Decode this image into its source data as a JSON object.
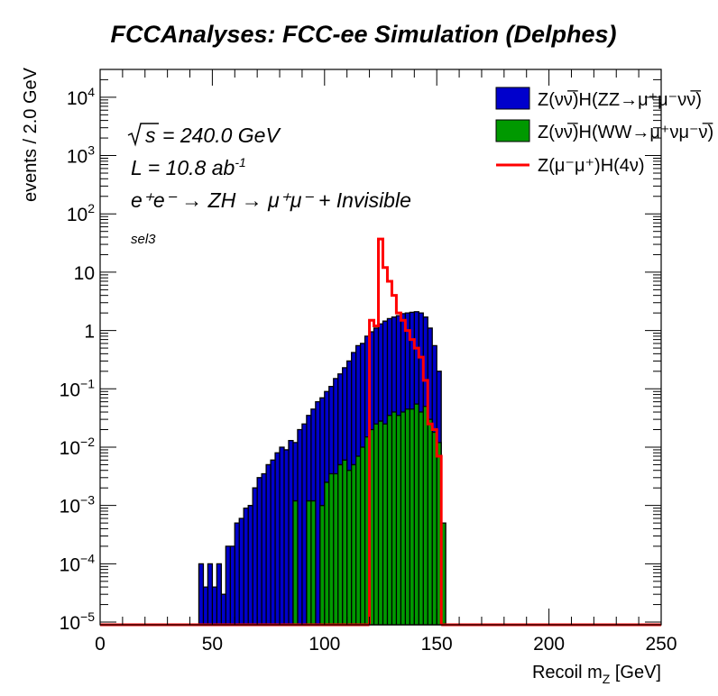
{
  "chart_data": {
    "type": "histogram",
    "title": "FCCAnalyses: FCC-ee Simulation (Delphes)",
    "xlabel": "Recoil m_Z [GeV]",
    "ylabel": "events / 2.0 GeV",
    "xlim": [
      0,
      250
    ],
    "ylim": [
      9e-06,
      30000
    ],
    "yscale": "log",
    "bin_width": 2.0,
    "x_ticks": [
      "0",
      "50",
      "100",
      "150",
      "200",
      "250"
    ],
    "y_ticks": [
      "10^{-5}",
      "10^{-4}",
      "10^{-3}",
      "10^{-2}",
      "10^{-1}",
      "1",
      "10",
      "10^{2}",
      "10^{3}",
      "10^{4}"
    ],
    "annotations": {
      "sqrts": "= 240.0 GeV",
      "lumi": "L = 10.8 ab",
      "lumi_exp": "-1",
      "process": "e⁺e⁻ → ZH → μ⁺μ⁻ + Invisible",
      "selection": "sel3"
    },
    "legend": {
      "position": "top-right",
      "entries": [
        {
          "label": "Z(νν̅)H(ZZ→μ⁺μ⁻νν̅)",
          "style": "fill",
          "color": "#0000cc"
        },
        {
          "label": "Z(νν̅)H(WW→μ⁺νμ⁻ν̅)",
          "style": "fill",
          "color": "#009900"
        },
        {
          "label": "Z(μ⁻μ⁺)H(4ν)",
          "style": "line",
          "color": "#ff0000"
        }
      ]
    },
    "series": [
      {
        "name": "Z(νν̅)H(ZZ→μ⁺μ⁻νν̅)",
        "style": "filled",
        "color": "#0000cc",
        "bins": [
          [
            44,
            0.0001
          ],
          [
            46,
            4e-05
          ],
          [
            48,
            0.0001
          ],
          [
            50,
            4e-05
          ],
          [
            52,
            0.0001
          ],
          [
            54,
            3e-05
          ],
          [
            56,
            0.0002
          ],
          [
            58,
            0.0002
          ],
          [
            60,
            0.0005
          ],
          [
            62,
            0.0006
          ],
          [
            64,
            0.0009
          ],
          [
            66,
            0.001
          ],
          [
            68,
            0.002
          ],
          [
            70,
            0.003
          ],
          [
            72,
            0.0035
          ],
          [
            74,
            0.005
          ],
          [
            76,
            0.006
          ],
          [
            78,
            0.008
          ],
          [
            80,
            0.01
          ],
          [
            82,
            0.009
          ],
          [
            84,
            0.013
          ],
          [
            86,
            0.012
          ],
          [
            88,
            0.02
          ],
          [
            90,
            0.025
          ],
          [
            92,
            0.035
          ],
          [
            94,
            0.045
          ],
          [
            96,
            0.06
          ],
          [
            98,
            0.07
          ],
          [
            100,
            0.09
          ],
          [
            102,
            0.11
          ],
          [
            104,
            0.15
          ],
          [
            106,
            0.18
          ],
          [
            108,
            0.23
          ],
          [
            110,
            0.3
          ],
          [
            112,
            0.42
          ],
          [
            114,
            0.55
          ],
          [
            116,
            0.6
          ],
          [
            118,
            0.8
          ],
          [
            120,
            0.95
          ],
          [
            122,
            1.1
          ],
          [
            124,
            1.3
          ],
          [
            126,
            1.45
          ],
          [
            128,
            1.6
          ],
          [
            130,
            1.7
          ],
          [
            132,
            1.8
          ],
          [
            134,
            1.95
          ],
          [
            136,
            2.0
          ],
          [
            138,
            2.05
          ],
          [
            140,
            2.1
          ],
          [
            142,
            2.0
          ],
          [
            144,
            1.7
          ],
          [
            146,
            1.1
          ],
          [
            148,
            0.55
          ],
          [
            150,
            0.2
          ]
        ]
      },
      {
        "name": "Z(νν̅)H(WW→μ⁺νμ⁻ν̅)",
        "style": "filled",
        "color": "#009900",
        "bins": [
          [
            86,
            0.0012
          ],
          [
            92,
            0.0012
          ],
          [
            94,
            0.0012
          ],
          [
            98,
            0.001
          ],
          [
            100,
            0.0025
          ],
          [
            102,
            0.0035
          ],
          [
            104,
            0.0035
          ],
          [
            106,
            0.005
          ],
          [
            108,
            0.006
          ],
          [
            110,
            0.004
          ],
          [
            112,
            0.005
          ],
          [
            114,
            0.007
          ],
          [
            116,
            0.01
          ],
          [
            118,
            0.015
          ],
          [
            120,
            0.02
          ],
          [
            122,
            0.025
          ],
          [
            124,
            0.028
          ],
          [
            126,
            0.025
          ],
          [
            128,
            0.035
          ],
          [
            130,
            0.04
          ],
          [
            132,
            0.035
          ],
          [
            134,
            0.04
          ],
          [
            136,
            0.045
          ],
          [
            138,
            0.045
          ],
          [
            140,
            0.055
          ],
          [
            142,
            0.04
          ],
          [
            144,
            0.05
          ],
          [
            146,
            0.03
          ],
          [
            148,
            0.018
          ],
          [
            150,
            0.012
          ],
          [
            152,
            0.0005
          ]
        ]
      },
      {
        "name": "Z(μ⁻μ⁺)H(4ν)",
        "style": "line",
        "color": "#ff0000",
        "bins": [
          [
            120,
            1.5
          ],
          [
            122,
            1.2
          ],
          [
            124,
            37
          ],
          [
            126,
            12
          ],
          [
            128,
            7
          ],
          [
            130,
            4
          ],
          [
            132,
            2.0
          ],
          [
            134,
            1.5
          ],
          [
            136,
            1.0
          ],
          [
            138,
            0.7
          ],
          [
            140,
            0.5
          ],
          [
            142,
            0.35
          ],
          [
            144,
            0.14
          ],
          [
            146,
            0.025
          ],
          [
            148,
            0.02
          ],
          [
            150,
            0.007
          ]
        ]
      }
    ]
  }
}
